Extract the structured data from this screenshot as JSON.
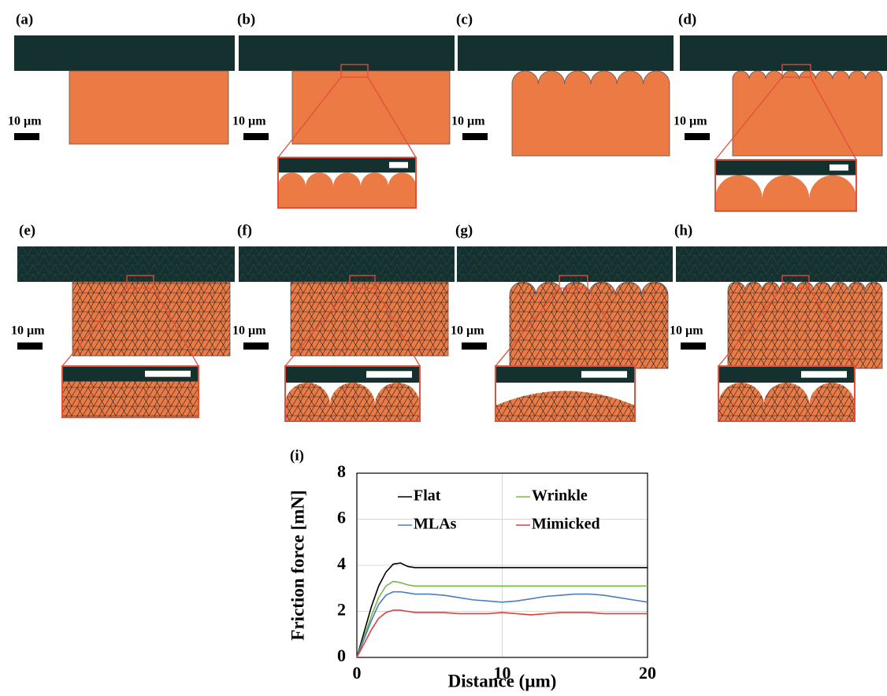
{
  "panels": [
    {
      "label": "(a)",
      "scale_label": "10 µm"
    },
    {
      "label": "(b)",
      "scale_label": "10 µm"
    },
    {
      "label": "(c)",
      "scale_label": "10 µm"
    },
    {
      "label": "(d)",
      "scale_label": "10 µm"
    },
    {
      "label": "(e)",
      "scale_label": "10 µm"
    },
    {
      "label": "(f)",
      "scale_label": "10 µm"
    },
    {
      "label": "(g)",
      "scale_label": "10 µm"
    },
    {
      "label": "(h)",
      "scale_label": "10 µm"
    }
  ],
  "chart_data": {
    "type": "line",
    "panel_label": "(i)",
    "xlabel": "Distance (µm)",
    "ylabel": "Friction force [mN]",
    "xlim": [
      0,
      20
    ],
    "ylim": [
      0,
      8
    ],
    "xticks": [
      0,
      10,
      20
    ],
    "yticks": [
      0,
      2,
      4,
      6,
      8
    ],
    "grid": true,
    "x": [
      0,
      0.5,
      1,
      1.5,
      2,
      2.5,
      3,
      3.5,
      4,
      5,
      6,
      7,
      8,
      9,
      10,
      11,
      12,
      13,
      14,
      15,
      16,
      17,
      18,
      19,
      20
    ],
    "series": [
      {
        "name": "Flat",
        "color": "#000000",
        "values": [
          0,
          1.1,
          2.2,
          3.1,
          3.7,
          4.05,
          4.1,
          3.95,
          3.9,
          3.9,
          3.9,
          3.9,
          3.9,
          3.9,
          3.9,
          3.9,
          3.9,
          3.9,
          3.9,
          3.9,
          3.9,
          3.9,
          3.9,
          3.9,
          3.9
        ]
      },
      {
        "name": "Wrinkle",
        "color": "#7ab648",
        "values": [
          0,
          0.9,
          1.8,
          2.6,
          3.1,
          3.3,
          3.25,
          3.15,
          3.1,
          3.1,
          3.1,
          3.1,
          3.1,
          3.1,
          3.1,
          3.1,
          3.1,
          3.1,
          3.1,
          3.1,
          3.1,
          3.1,
          3.1,
          3.1,
          3.1
        ]
      },
      {
        "name": "MLAs",
        "color": "#4a7ebb",
        "values": [
          0,
          0.8,
          1.6,
          2.3,
          2.7,
          2.85,
          2.85,
          2.8,
          2.75,
          2.75,
          2.7,
          2.6,
          2.5,
          2.45,
          2.4,
          2.45,
          2.55,
          2.65,
          2.7,
          2.75,
          2.75,
          2.7,
          2.6,
          2.5,
          2.4
        ]
      },
      {
        "name": "Mimicked",
        "color": "#e0403a",
        "values": [
          0,
          0.6,
          1.2,
          1.7,
          1.95,
          2.05,
          2.05,
          2.0,
          1.95,
          1.95,
          1.95,
          1.9,
          1.9,
          1.9,
          1.95,
          1.9,
          1.85,
          1.9,
          1.95,
          1.95,
          1.95,
          1.9,
          1.9,
          1.9,
          1.9
        ]
      }
    ]
  }
}
